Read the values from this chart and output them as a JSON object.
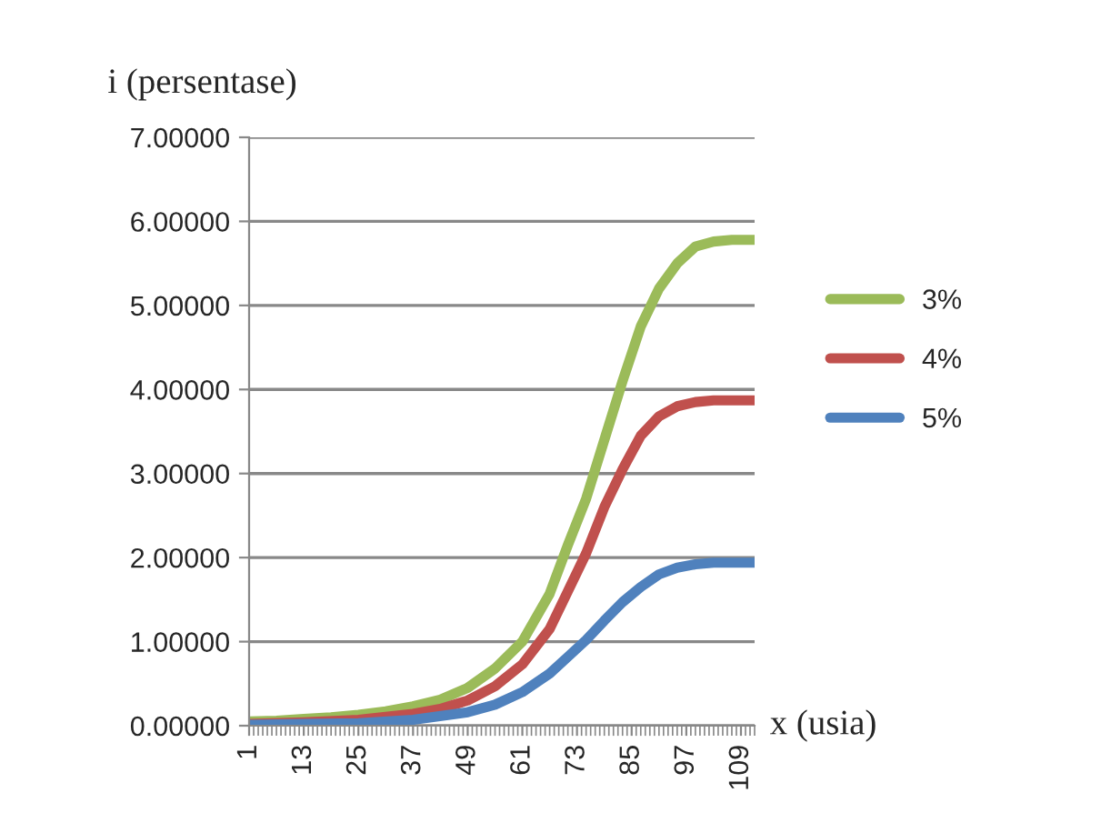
{
  "chart_data": {
    "type": "line",
    "ylabel": "i (persentase)",
    "xlabel": "x (usia)",
    "xlim": [
      1,
      112
    ],
    "xticks": [
      1,
      13,
      25,
      37,
      49,
      61,
      73,
      85,
      97,
      109
    ],
    "ylim": [
      0,
      7
    ],
    "yticks": [
      {
        "value": 0,
        "label": "0.00000"
      },
      {
        "value": 1,
        "label": "1.00000"
      },
      {
        "value": 2,
        "label": "2.00000"
      },
      {
        "value": 3,
        "label": "3.00000"
      },
      {
        "value": 4,
        "label": "4.00000"
      },
      {
        "value": 5,
        "label": "5.00000"
      },
      {
        "value": 6,
        "label": "6.00000"
      },
      {
        "value": 7,
        "label": "7.00000"
      }
    ],
    "grid": "y",
    "legend": "right",
    "marker": "none",
    "line_style": "solid",
    "series": [
      {
        "name": "3%",
        "color": "#9bbb59",
        "x": [
          1,
          7,
          13,
          19,
          25,
          31,
          37,
          43,
          49,
          55,
          61,
          67,
          71,
          75,
          79,
          83,
          87,
          91,
          95,
          99,
          103,
          107,
          112
        ],
        "values": [
          0.05,
          0.06,
          0.08,
          0.1,
          0.13,
          0.17,
          0.23,
          0.31,
          0.45,
          0.68,
          1.0,
          1.57,
          2.15,
          2.7,
          3.4,
          4.1,
          4.75,
          5.2,
          5.5,
          5.7,
          5.76,
          5.78,
          5.78
        ]
      },
      {
        "name": "4%",
        "color": "#c0504d",
        "x": [
          1,
          13,
          25,
          37,
          43,
          49,
          55,
          61,
          67,
          71,
          75,
          79,
          83,
          87,
          91,
          95,
          99,
          103,
          112
        ],
        "values": [
          0.02,
          0.04,
          0.07,
          0.14,
          0.2,
          0.3,
          0.47,
          0.73,
          1.15,
          1.6,
          2.05,
          2.6,
          3.05,
          3.45,
          3.68,
          3.8,
          3.85,
          3.87,
          3.87
        ]
      },
      {
        "name": "5%",
        "color": "#4f81bd",
        "x": [
          1,
          13,
          25,
          37,
          49,
          55,
          61,
          67,
          71,
          75,
          79,
          83,
          87,
          91,
          95,
          99,
          103,
          112
        ],
        "values": [
          0.01,
          0.02,
          0.03,
          0.07,
          0.16,
          0.25,
          0.4,
          0.62,
          0.82,
          1.02,
          1.25,
          1.47,
          1.65,
          1.8,
          1.88,
          1.92,
          1.94,
          1.94
        ]
      }
    ]
  }
}
